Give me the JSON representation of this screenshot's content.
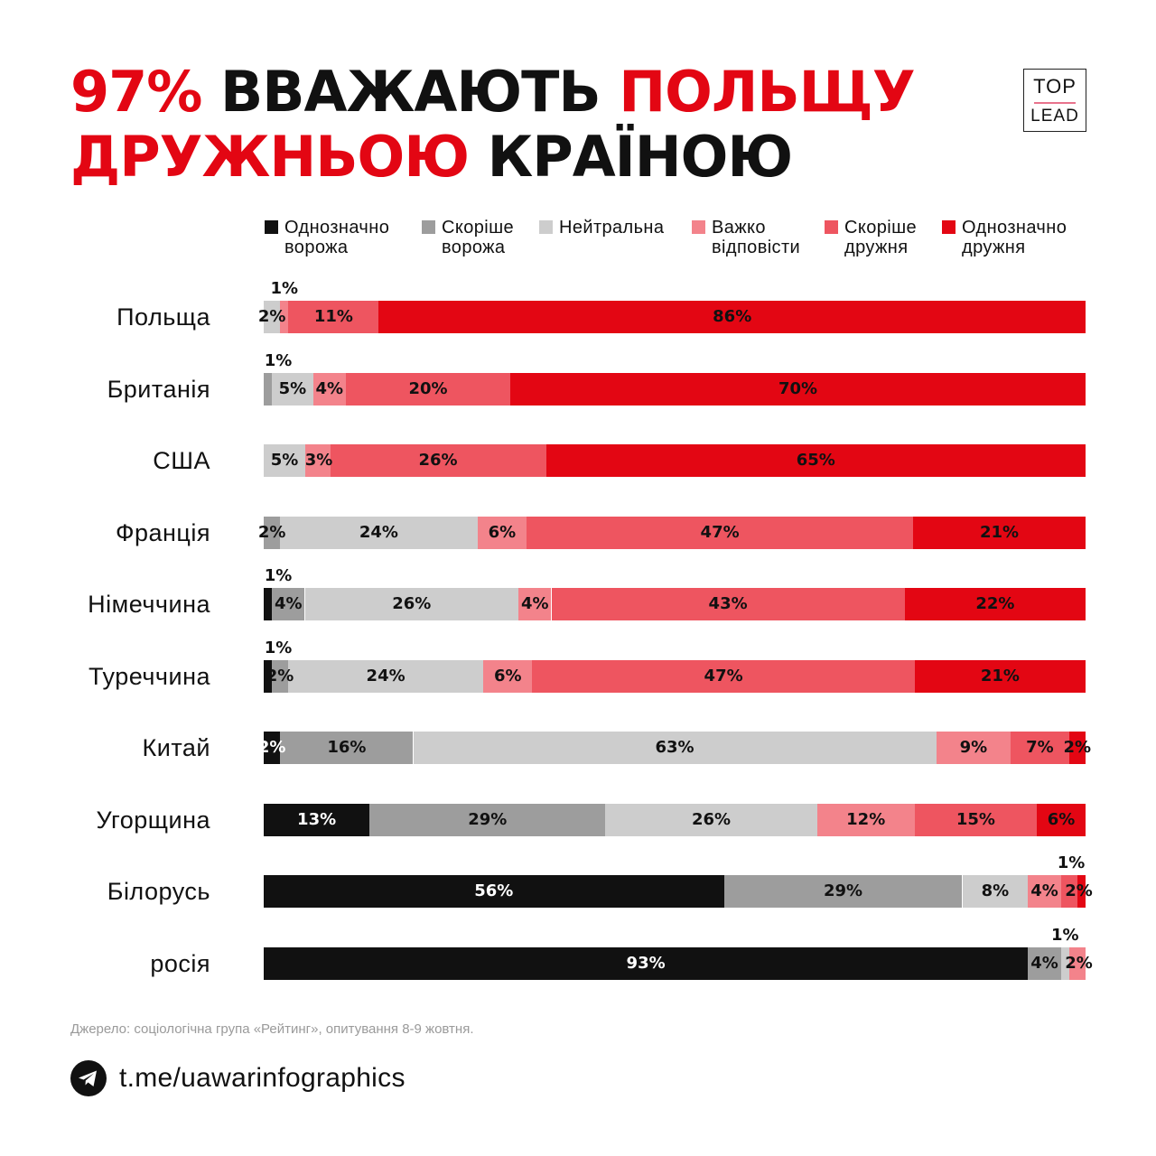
{
  "title": {
    "part1": "97%",
    "part2": " ВВАЖАЮТЬ ",
    "part3": "ПОЛЬЩУ",
    "part4": "ДРУЖНЬОЮ",
    "part5": " КРАЇНОЮ"
  },
  "logo": {
    "top": "TOP",
    "bottom": "LEAD"
  },
  "colors": {
    "black": "#111111",
    "dark_gray": "#9d9d9d",
    "light_gray": "#cdcdcd",
    "pink": "#f3838b",
    "salmon": "#ee5560",
    "red": "#e30613"
  },
  "chart_data": {
    "type": "bar",
    "orientation": "horizontal-stacked-100",
    "title": "97% ВВАЖАЮТЬ ПОЛЬЩУ ДРУЖНЬОЮ КРАЇНОЮ",
    "series_names": [
      "Однозначно\nворожа",
      "Скоріше\nворожа",
      "Нейтральна",
      "Важко\nвідповісти",
      "Скоріше\nдружня",
      "Однозначно\nдружня"
    ],
    "series_colors": [
      "#111111",
      "#9d9d9d",
      "#cdcdcd",
      "#f3838b",
      "#ee5560",
      "#e30613"
    ],
    "categories": [
      "Польща",
      "Британія",
      "США",
      "Франція",
      "Німеччина",
      "Туреччина",
      "Китай",
      "Угорщина",
      "Білорусь",
      "росія"
    ],
    "values": [
      [
        0,
        0,
        2,
        1,
        11,
        86
      ],
      [
        0,
        1,
        5,
        4,
        20,
        70
      ],
      [
        0,
        0,
        5,
        3,
        26,
        65
      ],
      [
        0,
        2,
        24,
        6,
        47,
        21
      ],
      [
        1,
        4,
        26,
        4,
        43,
        22
      ],
      [
        1,
        2,
        24,
        6,
        47,
        21
      ],
      [
        2,
        16,
        63,
        9,
        7,
        2
      ],
      [
        13,
        29,
        26,
        12,
        15,
        6
      ],
      [
        56,
        29,
        8,
        4,
        2,
        1
      ],
      [
        93,
        4,
        1,
        2,
        0,
        0
      ]
    ],
    "labels": [
      [
        "",
        "",
        "2%",
        "1%",
        "11%",
        "86%"
      ],
      [
        "",
        "1%",
        "5%",
        "4%",
        "20%",
        "70%"
      ],
      [
        "",
        "",
        "5%",
        "3%",
        "26%",
        "65%"
      ],
      [
        "",
        "2%",
        "24%",
        "6%",
        "47%",
        "21%"
      ],
      [
        "1%",
        "4%",
        "26%",
        "4%",
        "43%",
        "22%"
      ],
      [
        "1%",
        "2%",
        "24%",
        "6%",
        "47%",
        "21%"
      ],
      [
        "2%",
        "16%",
        "63%",
        "9%",
        "7%",
        "2%"
      ],
      [
        "13%",
        "29%",
        "26%",
        "12%",
        "15%",
        "6%"
      ],
      [
        "56%",
        "29%",
        "8%",
        "4%",
        "2%",
        "1%"
      ],
      [
        "93%",
        "4%",
        "1%",
        "2%",
        "",
        ""
      ]
    ],
    "xlim": [
      0,
      100
    ]
  },
  "footer": {
    "source": "Джерело: соціологічна група «Рейтинг», опитування 8-9 жовтня.",
    "link": "t.me/uawarinfographics"
  }
}
